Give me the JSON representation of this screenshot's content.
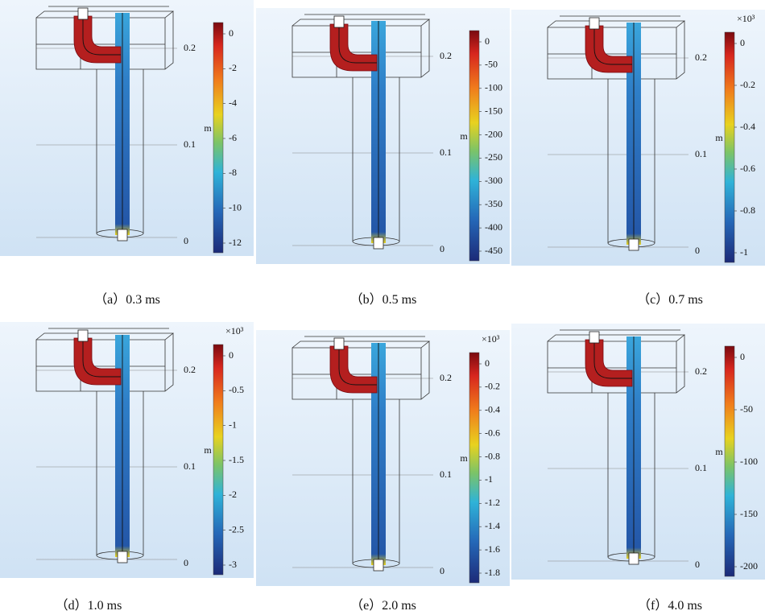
{
  "panels": [
    {
      "caption": "（a）0.3 ms",
      "unit": "m",
      "axis_labels": [
        "0.2",
        "0.1",
        "0"
      ],
      "colorbar_labels": [
        "0",
        "-2",
        "-4",
        "-6",
        "-8",
        "-10",
        "-12"
      ]
    },
    {
      "caption": "（b）0.5 ms",
      "unit": "m",
      "axis_labels": [
        "0.2",
        "0.1",
        "0"
      ],
      "colorbar_labels": [
        "0",
        "-50",
        "-100",
        "-150",
        "-200",
        "-250",
        "-300",
        "-350",
        "-400",
        "-450"
      ]
    },
    {
      "caption": "（c）0.7 ms",
      "unit": "m",
      "axis_labels": [
        "0.2",
        "0.1",
        "0"
      ],
      "multiplier": "×10³",
      "colorbar_labels": [
        "0",
        "-0.2",
        "-0.4",
        "-0.6",
        "-0.8",
        "-1"
      ]
    },
    {
      "caption": "（d）1.0 ms",
      "unit": "m",
      "axis_labels": [
        "0.2",
        "0.1",
        "0"
      ],
      "multiplier": "×10³",
      "colorbar_labels": [
        "0",
        "-0.5",
        "-1",
        "-1.5",
        "-2",
        "-2.5",
        "-3"
      ]
    },
    {
      "caption": "（e）2.0 ms",
      "unit": "m",
      "axis_labels": [
        "0.2",
        "0.1",
        "0"
      ],
      "multiplier": "×10³",
      "colorbar_labels": [
        "0",
        "-0.2",
        "-0.4",
        "-0.6",
        "-0.8",
        "-1",
        "-1.2",
        "-1.4",
        "-1.6",
        "-1.8"
      ]
    },
    {
      "caption": "（f）4.0 ms",
      "unit": "m",
      "axis_labels": [
        "0.2",
        "0.1",
        "0"
      ],
      "colorbar_labels": [
        "0",
        "-50",
        "-100",
        "-150",
        "-200"
      ]
    }
  ]
}
